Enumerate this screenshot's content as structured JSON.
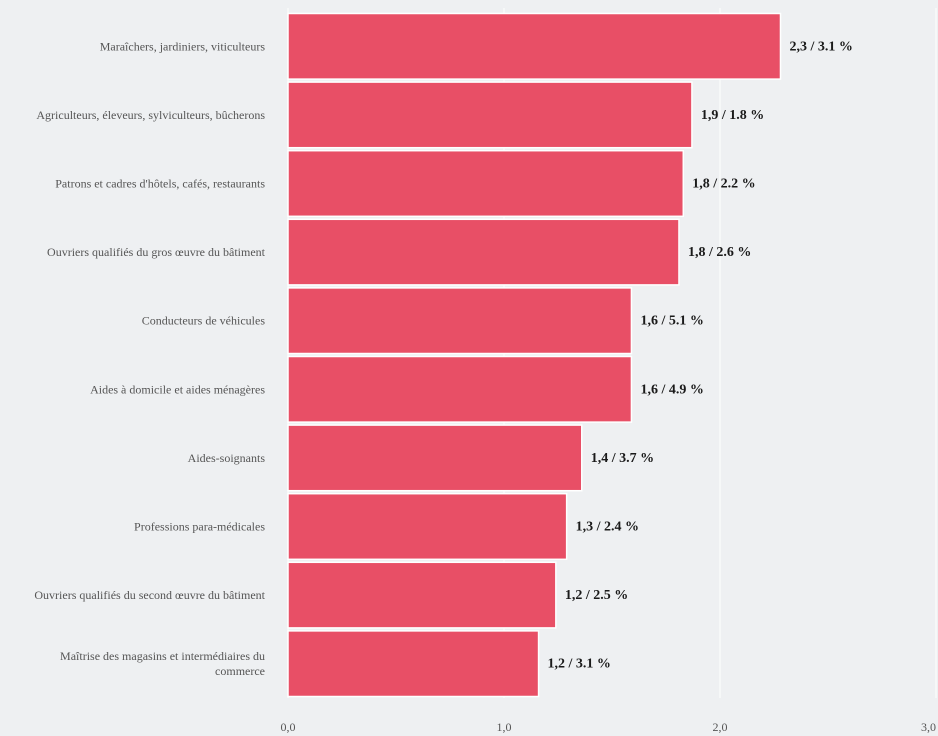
{
  "chart_data": {
    "type": "bar",
    "orientation": "horizontal",
    "categories": [
      "Maraîchers, jardiniers, viticulteurs",
      "Agriculteurs, éleveurs, sylviculteurs, bûcherons",
      "Patrons et cadres d'hôtels, cafés, restaurants",
      "Ouvriers qualifiés du gros œuvre du bâtiment",
      "Conducteurs de véhicules",
      "Aides à domicile et aides ménagères",
      "Aides-soignants",
      "Professions para-médicales",
      "Ouvriers qualifiés du second œuvre du bâtiment",
      "Maîtrise des magasins et intermédiaires du commerce"
    ],
    "values": [
      2.28,
      1.87,
      1.83,
      1.81,
      1.59,
      1.59,
      1.36,
      1.29,
      1.24,
      1.16
    ],
    "data_labels": [
      "2,3 / 3.1 %",
      "1,9 / 1.8 %",
      "1,8 / 2.2 %",
      "1,8 / 2.6 %",
      "1,6 / 5.1 %",
      "1,6 / 4.9 %",
      "1,4 / 3.7 %",
      "1,3 / 2.4 %",
      "1,2 / 2.5 %",
      "1,2 / 3.1 %"
    ],
    "xlim": [
      0,
      3.0
    ],
    "x_ticks": [
      0,
      1,
      2,
      3
    ],
    "x_tick_labels": [
      "0,0",
      "1,0",
      "2,0",
      "3,0"
    ],
    "title": "",
    "xlabel": "",
    "ylabel": "",
    "grid": true,
    "colors": {
      "bar": "#e84f66",
      "background": "#eef0f2",
      "grid": "#ffffff",
      "label_text": "#555555",
      "value_text": "#1a1a1a"
    }
  }
}
